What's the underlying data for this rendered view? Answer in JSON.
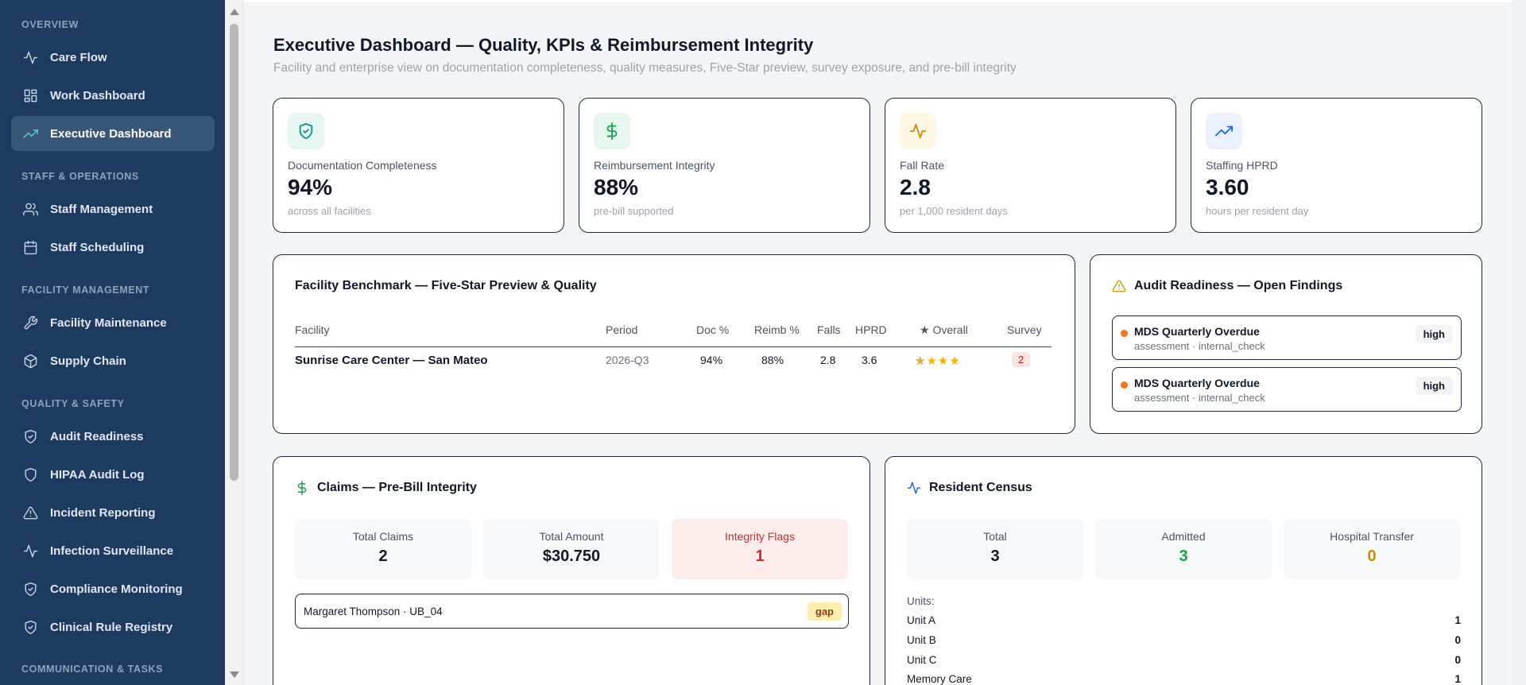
{
  "sidebar": {
    "sections": [
      {
        "label": "OVERVIEW"
      },
      {
        "label": "STAFF & OPERATIONS"
      },
      {
        "label": "FACILITY MANAGEMENT"
      },
      {
        "label": "QUALITY & SAFETY"
      },
      {
        "label": "COMMUNICATION & TASKS"
      }
    ],
    "items": [
      {
        "label": "Care Flow",
        "icon": "activity-icon"
      },
      {
        "label": "Work Dashboard",
        "icon": "layout-grid-icon"
      },
      {
        "label": "Executive Dashboard",
        "icon": "trending-up-icon",
        "active": true
      },
      {
        "label": "Staff Management",
        "icon": "users-icon"
      },
      {
        "label": "Staff Scheduling",
        "icon": "calendar-icon"
      },
      {
        "label": "Facility Maintenance",
        "icon": "wrench-icon"
      },
      {
        "label": "Supply Chain",
        "icon": "package-icon"
      },
      {
        "label": "Audit Readiness",
        "icon": "shield-check-icon"
      },
      {
        "label": "HIPAA Audit Log",
        "icon": "shield-icon"
      },
      {
        "label": "Incident Reporting",
        "icon": "alert-triangle-icon"
      },
      {
        "label": "Infection Surveillance",
        "icon": "activity-icon"
      },
      {
        "label": "Compliance Monitoring",
        "icon": "shield-check-icon"
      },
      {
        "label": "Clinical Rule Registry",
        "icon": "shield-check-icon"
      }
    ]
  },
  "header": {
    "title": "Executive Dashboard — Quality, KPIs & Reimbursement Integrity",
    "subtitle": "Facility and enterprise view on documentation completeness, quality measures, Five-Star preview, survey exposure, and pre-bill integrity"
  },
  "kpis": [
    {
      "label": "Documentation Completeness",
      "value": "94%",
      "note": "across all facilities",
      "icon": "shield-check-icon",
      "color": "#0d9488"
    },
    {
      "label": "Reimbursement Integrity",
      "value": "88%",
      "note": "pre-bill supported",
      "icon": "dollar-icon",
      "color": "#16a34a"
    },
    {
      "label": "Fall Rate",
      "value": "2.8",
      "note": "per 1,000 resident days",
      "icon": "activity-icon",
      "color": "#ca8a04"
    },
    {
      "label": "Staffing HPRD",
      "value": "3.60",
      "note": "hours per resident day",
      "icon": "trending-up-icon",
      "color": "#2563eb"
    }
  ],
  "benchmark": {
    "title": "Facility Benchmark — Five-Star Preview & Quality",
    "columns": [
      "Facility",
      "Period",
      "Doc %",
      "Reimb %",
      "Falls",
      "HPRD",
      "★ Overall",
      "Survey"
    ],
    "rows": [
      {
        "facility": "Sunrise Care Center — San Mateo",
        "period": "2026-Q3",
        "doc": "94%",
        "reimb": "88%",
        "falls": "2.8",
        "hprd": "3.6",
        "stars": 4,
        "stars_max": 5,
        "survey": "2"
      }
    ]
  },
  "audit": {
    "title": "Audit Readiness — Open Findings",
    "findings": [
      {
        "title": "MDS Quarterly Overdue",
        "sub": "assessment · internal_check",
        "severity": "high"
      },
      {
        "title": "MDS Quarterly Overdue",
        "sub": "assessment · internal_check",
        "severity": "high"
      }
    ]
  },
  "claims": {
    "title": "Claims — Pre-Bill Integrity",
    "stats": [
      {
        "label": "Total Claims",
        "value": "2"
      },
      {
        "label": "Total Amount",
        "value": "$30.750"
      },
      {
        "label": "Integrity Flags",
        "value": "1"
      }
    ],
    "rows": [
      {
        "text": "Margaret Thompson · UB_04",
        "badge": "gap"
      }
    ]
  },
  "census": {
    "title": "Resident Census",
    "stats": [
      {
        "label": "Total",
        "value": "3",
        "color": "#111827"
      },
      {
        "label": "Admitted",
        "value": "3",
        "color": "#16a34a"
      },
      {
        "label": "Hospital Transfer",
        "value": "0",
        "color": "#ca8a04"
      }
    ],
    "units_label": "Units:",
    "units": [
      {
        "name": "Unit A",
        "count": "1"
      },
      {
        "name": "Unit B",
        "count": "0"
      },
      {
        "name": "Unit C",
        "count": "0"
      },
      {
        "name": "Memory Care",
        "count": "1"
      }
    ]
  }
}
